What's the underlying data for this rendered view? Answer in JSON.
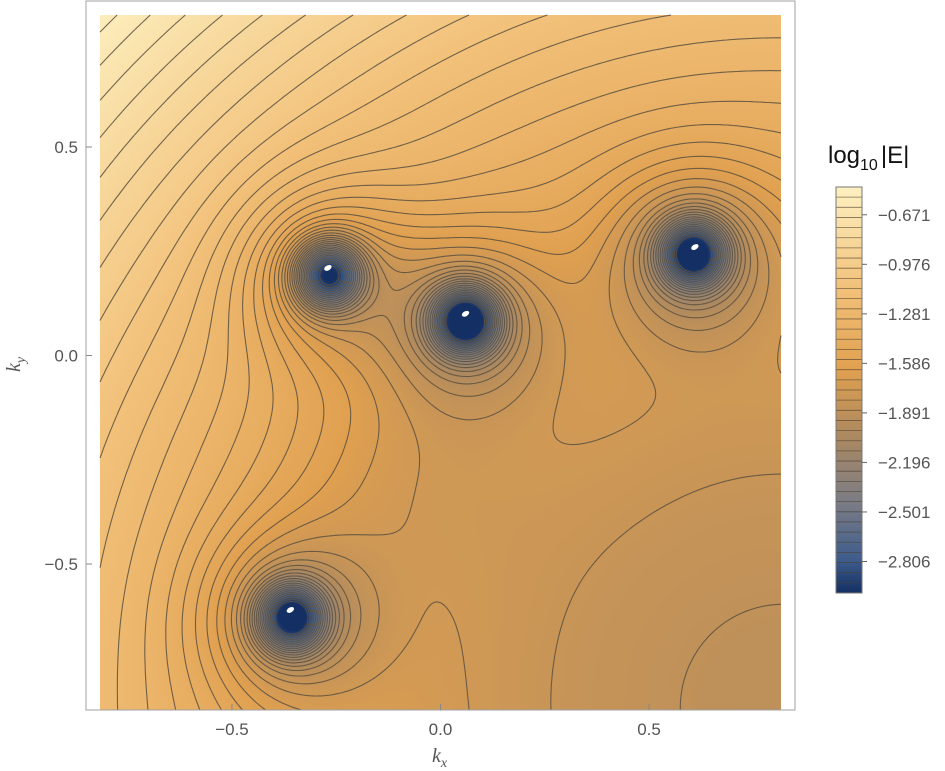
{
  "chart_data": {
    "type": "contour",
    "xlabel": "k",
    "xlabel_sub": "x",
    "ylabel": "k",
    "ylabel_sub": "y",
    "xlim": [
      -0.85,
      0.85
    ],
    "ylim": [
      -0.85,
      0.85
    ],
    "x_ticks": [
      -0.5,
      0.0,
      0.5
    ],
    "x_tick_labels": [
      "−0.5",
      "0.0",
      "0.5"
    ],
    "y_ticks": [
      0.5,
      0.0,
      -0.5
    ],
    "y_tick_labels": [
      "0.5",
      "0.0",
      "−0.5"
    ],
    "colorbar": {
      "title": "log",
      "title_sub": "10",
      "title_rest": "|E|",
      "range": [
        -3.0,
        -0.5
      ],
      "ticks": [
        -0.671,
        -0.976,
        -1.281,
        -1.586,
        -1.891,
        -2.196,
        -2.501,
        -2.806
      ],
      "tick_labels": [
        "−0.671",
        "−0.976",
        "−1.281",
        "−1.586",
        "−1.891",
        "−2.196",
        "−2.501",
        "−2.806"
      ],
      "contour_levels": 40
    },
    "minima": [
      {
        "kx": -0.27,
        "ky": 0.21
      },
      {
        "kx": 0.06,
        "ky": 0.1
      },
      {
        "kx": 0.61,
        "ky": 0.26
      },
      {
        "kx": -0.36,
        "ky": -0.61
      }
    ],
    "colors": {
      "high": "#fdf0c0",
      "mid": "#e0a050",
      "low": "#142f63",
      "contour_line": "#5a5040",
      "frame": "#a0a0a0"
    }
  }
}
